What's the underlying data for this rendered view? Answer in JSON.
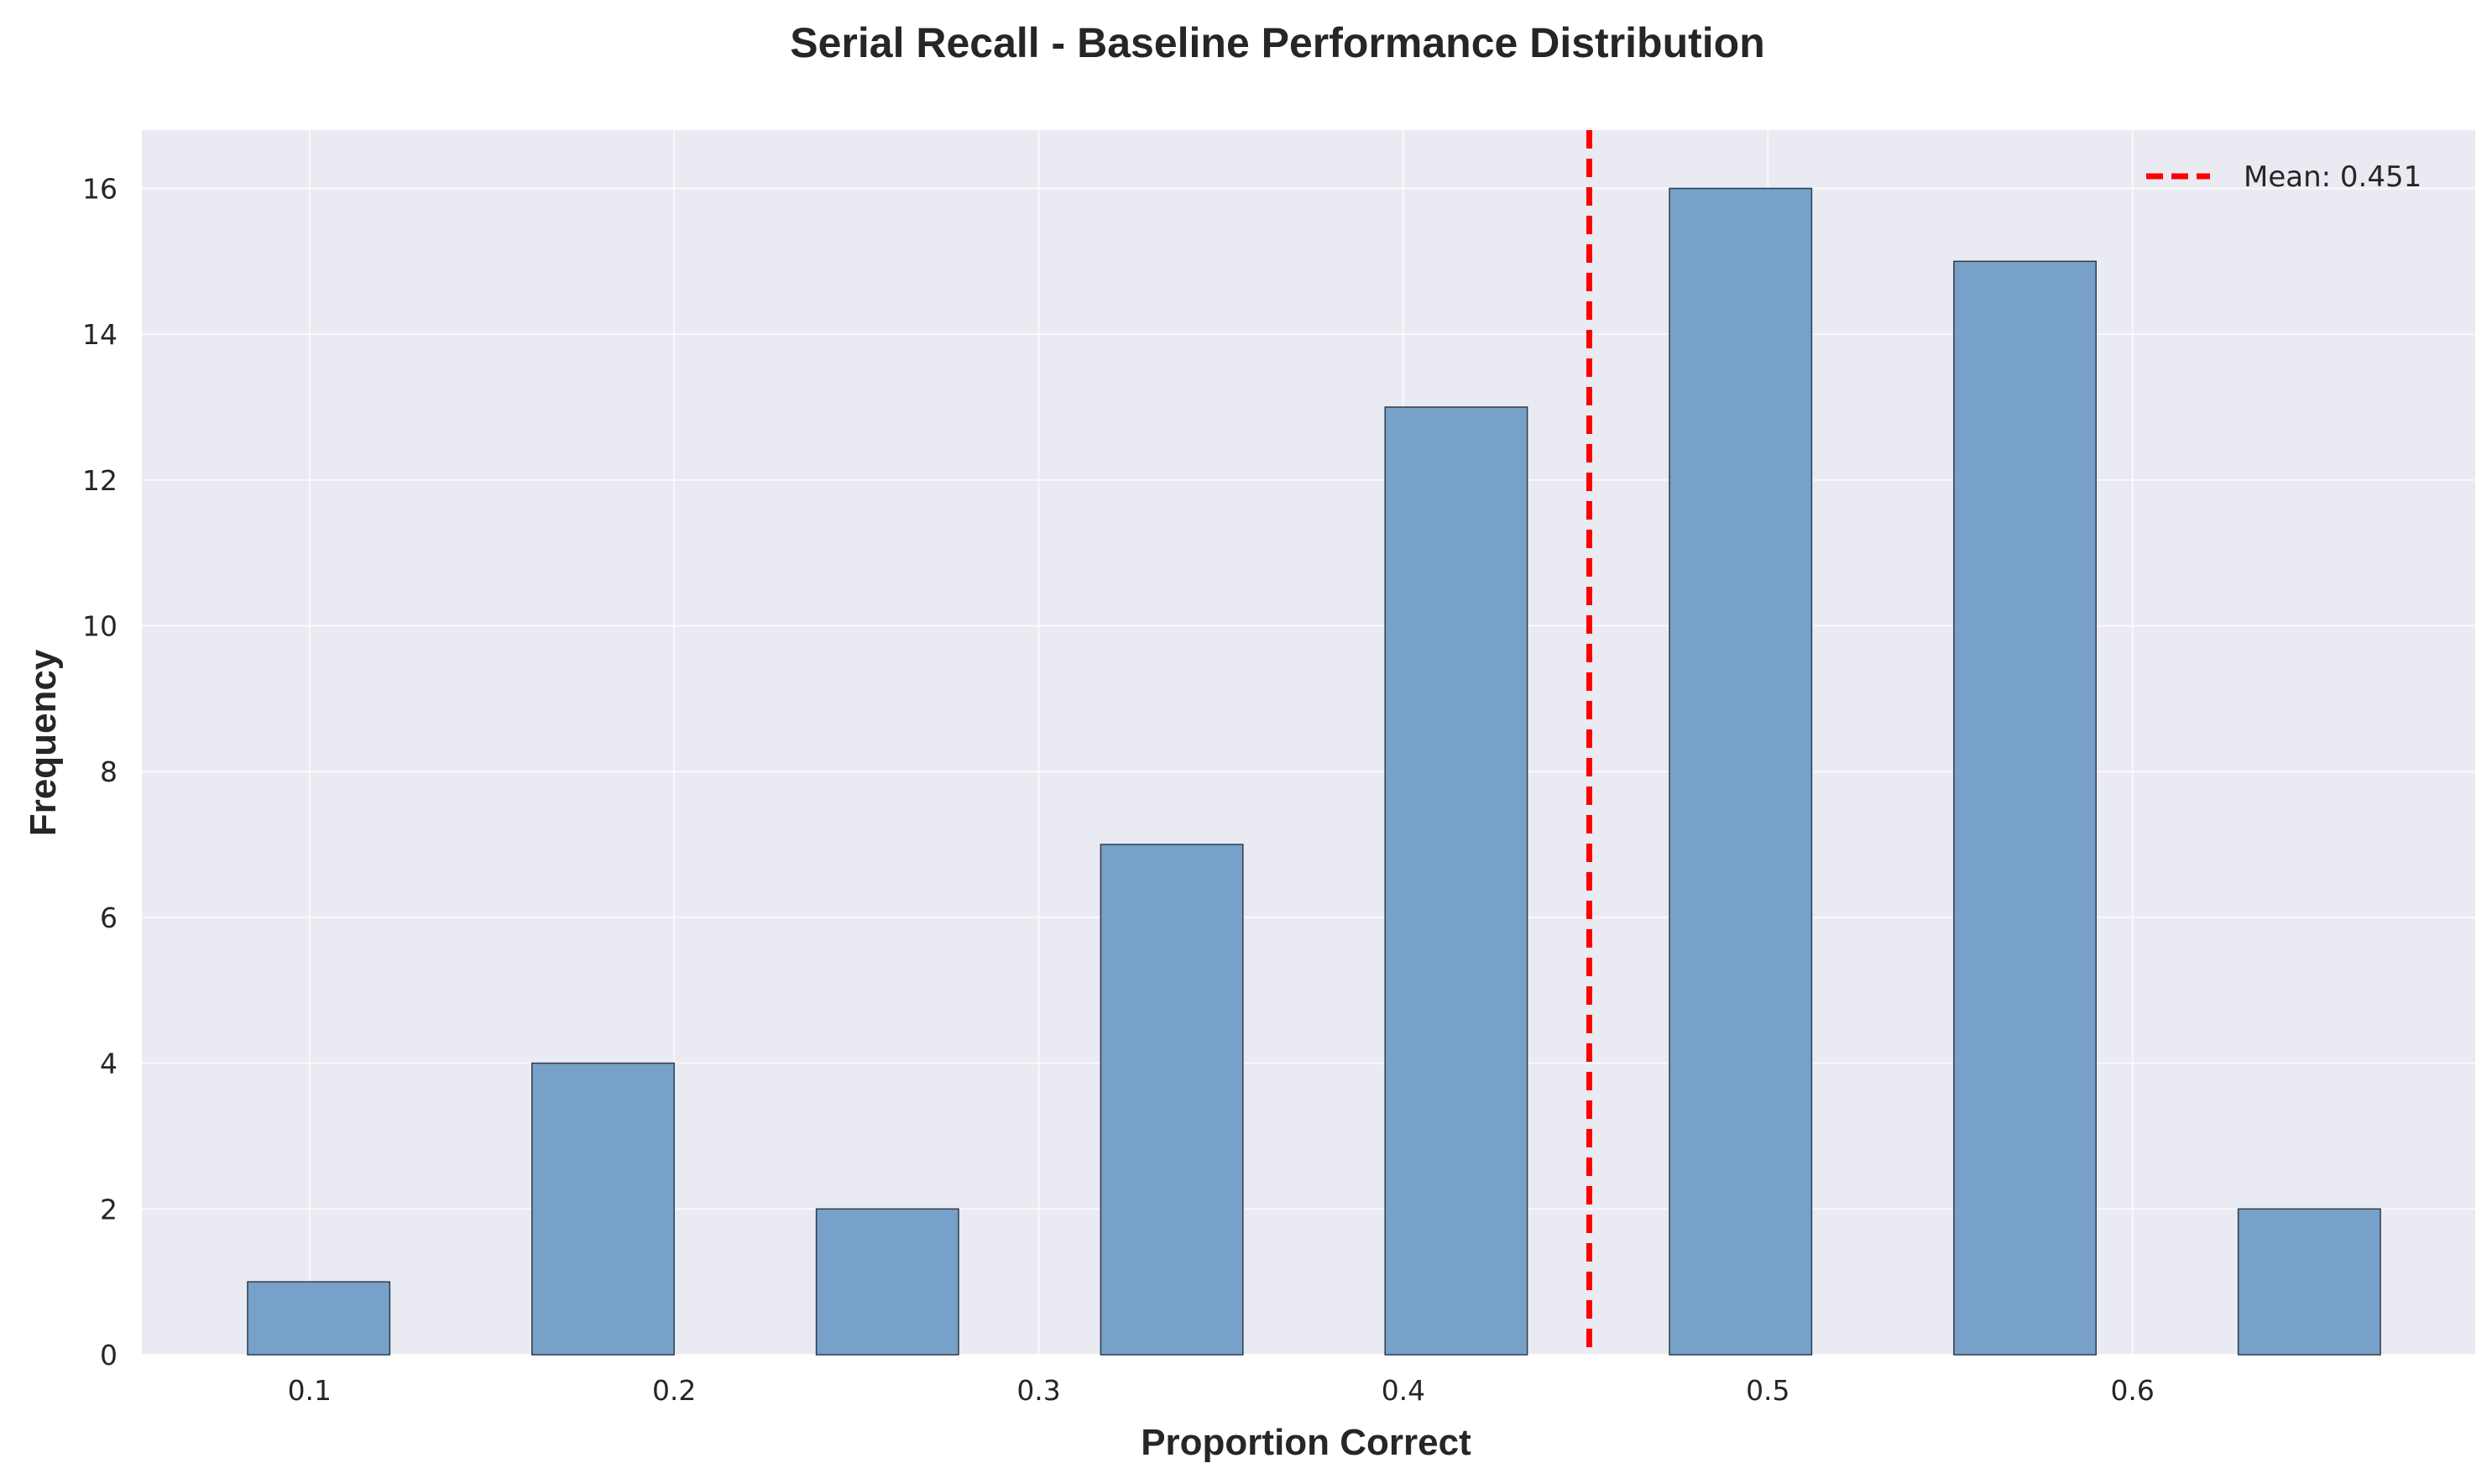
{
  "chart_data": {
    "type": "bar",
    "title": "Serial Recall - Baseline Performance Distribution",
    "xlabel": "Proportion Correct",
    "ylabel": "Frequency",
    "xlim": [
      0.054,
      0.694
    ],
    "ylim": [
      0,
      16.8
    ],
    "x_ticks": [
      "0.1",
      "0.2",
      "0.3",
      "0.4",
      "0.5",
      "0.6"
    ],
    "x_tick_values": [
      0.1,
      0.2,
      0.3,
      0.4,
      0.5,
      0.6
    ],
    "y_ticks": [
      "0",
      "2",
      "4",
      "6",
      "8",
      "10",
      "12",
      "14",
      "16"
    ],
    "y_tick_values": [
      0,
      2,
      4,
      6,
      8,
      10,
      12,
      14,
      16
    ],
    "bins": [
      {
        "x0": 0.083,
        "x1": 0.122,
        "value": 1
      },
      {
        "x0": 0.161,
        "x1": 0.2,
        "value": 4
      },
      {
        "x0": 0.239,
        "x1": 0.278,
        "value": 2
      },
      {
        "x0": 0.317,
        "x1": 0.356,
        "value": 7
      },
      {
        "x0": 0.395,
        "x1": 0.434,
        "value": 13
      },
      {
        "x0": 0.473,
        "x1": 0.512,
        "value": 16
      },
      {
        "x0": 0.551,
        "x1": 0.59,
        "value": 15
      },
      {
        "x0": 0.629,
        "x1": 0.668,
        "value": 2
      }
    ],
    "mean_line": {
      "value": 0.451,
      "label": "Mean: 0.451",
      "color": "#ff0000"
    },
    "bar_color": "#77a1c8",
    "bar_edge_color": "#2f3b4a",
    "background_color": "#eaeaf2",
    "grid": true,
    "legend_position": "top-right"
  }
}
